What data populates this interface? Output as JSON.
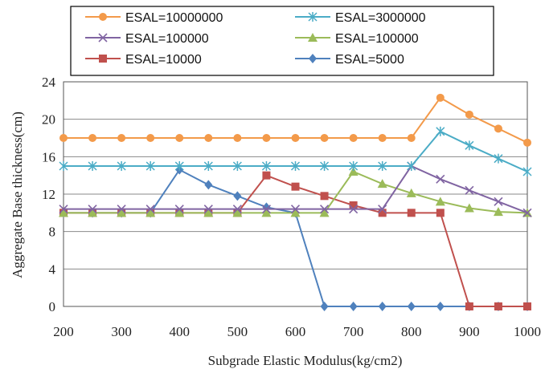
{
  "chart_data": {
    "type": "line",
    "xlabel": "Subgrade Elastic Modulus(kg/cm2)",
    "ylabel": "Aggregate Base thickness(cm)",
    "xlim": [
      200,
      1000
    ],
    "ylim": [
      0,
      24
    ],
    "x_ticks": [
      200,
      300,
      400,
      500,
      600,
      700,
      800,
      900,
      1000
    ],
    "y_ticks": [
      0,
      4,
      8,
      12,
      16,
      20,
      24
    ],
    "grid": "horizontal",
    "legend_position": "top",
    "x": [
      200,
      250,
      300,
      350,
      400,
      450,
      500,
      550,
      600,
      650,
      700,
      750,
      800,
      850,
      900,
      950,
      1000
    ],
    "series": [
      {
        "name": "ESAL=10000000",
        "color": "#F39A4A",
        "marker": "circle",
        "values": [
          18,
          18,
          18,
          18,
          18,
          18,
          18,
          18,
          18,
          18,
          18,
          18,
          18,
          22.3,
          20.5,
          19.0,
          17.5
        ]
      },
      {
        "name": "ESAL=3000000",
        "color": "#4BACC6",
        "marker": "star",
        "values": [
          15,
          15,
          15,
          15,
          15,
          15,
          15,
          15,
          15,
          15,
          15,
          15,
          15,
          18.7,
          17.2,
          15.8,
          14.4
        ]
      },
      {
        "name": "ESAL=100000",
        "color": "#8064A2",
        "marker": "x",
        "values": [
          10.4,
          10.4,
          10.4,
          10.4,
          10.4,
          10.4,
          10.4,
          10.4,
          10.4,
          10.4,
          10.4,
          10.4,
          15.0,
          13.6,
          12.4,
          11.2,
          10.0
        ]
      },
      {
        "name": "ESAL=100000",
        "color": "#9BBB59",
        "marker": "triangle",
        "values": [
          10,
          10,
          10,
          10,
          10,
          10,
          10,
          10,
          10,
          10,
          14.4,
          13.1,
          12.1,
          11.2,
          10.5,
          10.1,
          10.0
        ]
      },
      {
        "name": "ESAL=10000",
        "color": "#C0504D",
        "marker": "square",
        "values": [
          10,
          10,
          10,
          10,
          10,
          10,
          10,
          14.0,
          12.8,
          11.8,
          10.8,
          10.0,
          10.0,
          10.0,
          0,
          0,
          0
        ]
      },
      {
        "name": "ESAL=5000",
        "color": "#4F81BD",
        "marker": "diamond",
        "values": [
          10,
          10,
          10,
          10,
          14.6,
          13.0,
          11.8,
          10.6,
          10.0,
          0,
          0,
          0,
          0,
          0,
          0,
          0,
          0
        ]
      }
    ]
  }
}
